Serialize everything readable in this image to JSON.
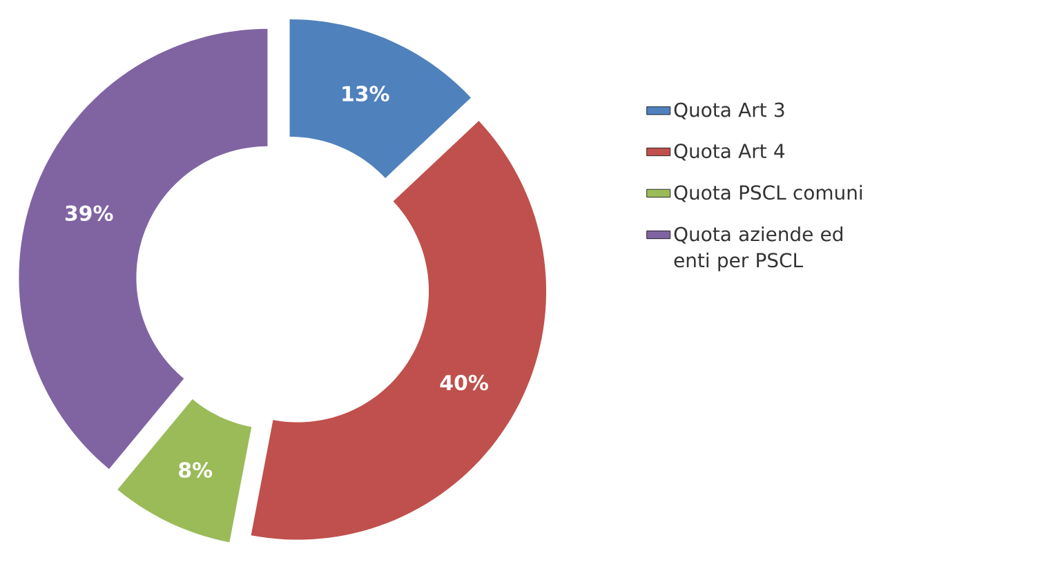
{
  "chart_data": {
    "type": "donut",
    "categories": [
      "Quota Art 3",
      "Quota Art 4",
      "Quota PSCL comuni",
      "Quota aziende ed enti per PSCL"
    ],
    "values": [
      13,
      40,
      8,
      39
    ],
    "colors": [
      "#4f81bd",
      "#c0504d",
      "#9bbb59",
      "#8064a2"
    ],
    "value_labels": [
      "13%",
      "40%",
      "8%",
      "39%"
    ],
    "legend": "right"
  }
}
